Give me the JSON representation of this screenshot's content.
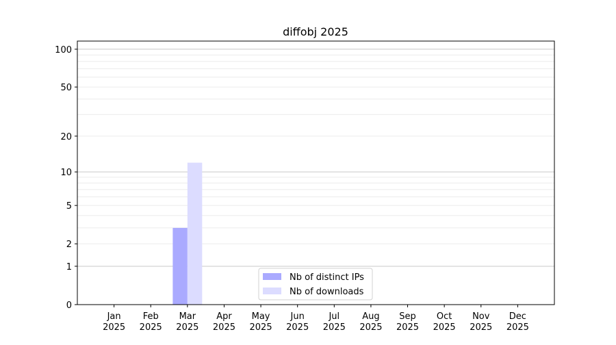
{
  "chart_data": {
    "type": "bar",
    "title": "diffobj 2025",
    "xlabel": "",
    "ylabel": "",
    "categories": [
      "Jan\n2025",
      "Feb\n2025",
      "Mar\n2025",
      "Apr\n2025",
      "May\n2025",
      "Jun\n2025",
      "Jul\n2025",
      "Aug\n2025",
      "Sep\n2025",
      "Oct\n2025",
      "Nov\n2025",
      "Dec\n2025"
    ],
    "series": [
      {
        "name": "Nb of distinct IPs",
        "color": "#aaaaff",
        "values": [
          0,
          0,
          3,
          0,
          0,
          0,
          0,
          0,
          0,
          0,
          0,
          0
        ]
      },
      {
        "name": "Nb of downloads",
        "color": "#dcdcff",
        "values": [
          0,
          0,
          12,
          0,
          0,
          0,
          0,
          0,
          0,
          0,
          0,
          0
        ]
      }
    ],
    "y_scale": "log(1+y)",
    "ylim": [
      0,
      116
    ],
    "y_ticks": [
      0,
      1,
      2,
      5,
      10,
      20,
      50,
      100
    ],
    "y_tick_labels": [
      "0",
      "1",
      "2",
      "5",
      "10",
      "20",
      "50",
      "100"
    ],
    "grid": true,
    "legend_position": "lower center"
  }
}
